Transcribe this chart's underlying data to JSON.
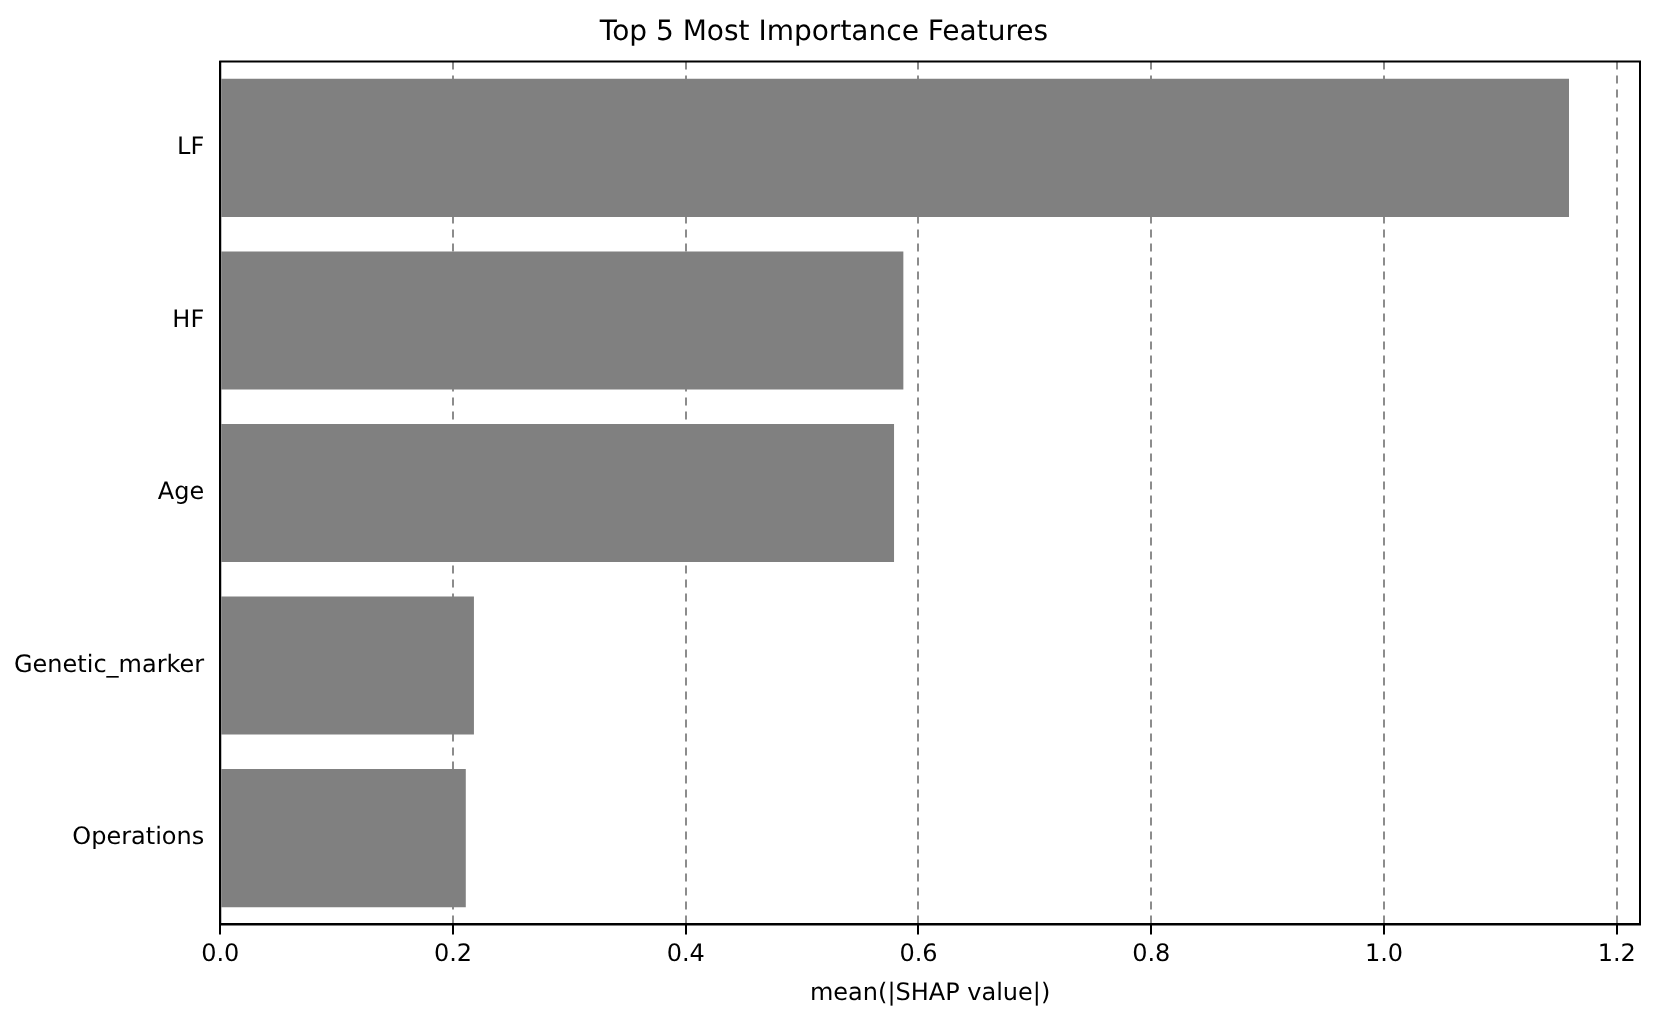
{
  "chart_data": {
    "type": "bar",
    "orientation": "horizontal",
    "title": "Top 5 Most Importance Features",
    "xlabel": "mean(|SHAP value|)",
    "categories": [
      "LF",
      "HF",
      "Age",
      "Genetic_marker",
      "Operations"
    ],
    "values": [
      1.159,
      0.587,
      0.579,
      0.218,
      0.211
    ],
    "color": "#808080",
    "xlim": [
      0,
      1.22
    ],
    "xticks": [
      {
        "value": 0,
        "label": "0.0"
      },
      {
        "value": 0.2,
        "label": "0.2"
      },
      {
        "value": 0.4,
        "label": "0.4"
      },
      {
        "value": 0.6,
        "label": "0.6"
      },
      {
        "value": 0.8,
        "label": "0.8"
      },
      {
        "value": 1.0,
        "label": "1.0"
      },
      {
        "value": 1.2,
        "label": "1.2"
      }
    ],
    "grid": "x"
  }
}
